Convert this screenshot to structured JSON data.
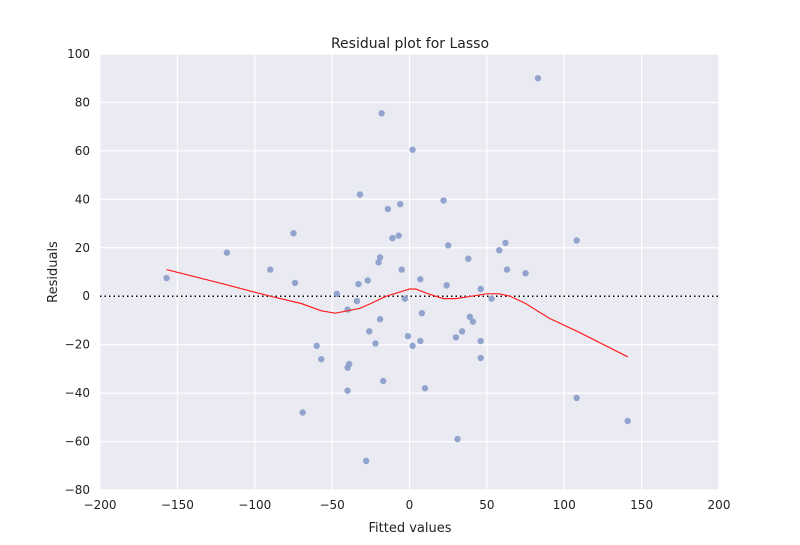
{
  "chart_data": {
    "type": "scatter",
    "title": "Residual plot for Lasso",
    "xlabel": "Fitted values",
    "ylabel": "Residuals",
    "xlim": [
      -200,
      200
    ],
    "ylim": [
      -80,
      100
    ],
    "xticks": [
      -200,
      -150,
      -100,
      -50,
      0,
      50,
      100,
      150,
      200
    ],
    "yticks": [
      -80,
      -60,
      -40,
      -20,
      0,
      20,
      40,
      60,
      80,
      100
    ],
    "xtick_labels": [
      "−200",
      "−150",
      "−100",
      "−50",
      "0",
      "50",
      "100",
      "150",
      "200"
    ],
    "ytick_labels": [
      "−80",
      "−60",
      "−40",
      "−20",
      "0",
      "20",
      "40",
      "60",
      "80",
      "100"
    ],
    "grid": true,
    "reference_line": {
      "y": 0,
      "style": "dotted",
      "color": "#000000"
    },
    "colors": {
      "background": "#eaeaf2",
      "grid": "#ffffff",
      "points": "#8da0cb",
      "lowess": "#ff2020"
    },
    "points": [
      {
        "x": -157,
        "y": 7.5
      },
      {
        "x": -118,
        "y": 18
      },
      {
        "x": -90,
        "y": 11
      },
      {
        "x": -75,
        "y": 26
      },
      {
        "x": -74,
        "y": 5.5
      },
      {
        "x": -69,
        "y": -48
      },
      {
        "x": -60,
        "y": -20.5
      },
      {
        "x": -57,
        "y": -26
      },
      {
        "x": -47,
        "y": 1
      },
      {
        "x": -40,
        "y": -39
      },
      {
        "x": -40,
        "y": -29.5
      },
      {
        "x": -39,
        "y": -28
      },
      {
        "x": -40,
        "y": -5.5
      },
      {
        "x": -34,
        "y": -2
      },
      {
        "x": -33,
        "y": 5
      },
      {
        "x": -32,
        "y": 42
      },
      {
        "x": -28,
        "y": -68
      },
      {
        "x": -27,
        "y": 6.5
      },
      {
        "x": -26,
        "y": -14.5
      },
      {
        "x": -22,
        "y": -19.5
      },
      {
        "x": -20,
        "y": 14
      },
      {
        "x": -19,
        "y": 16
      },
      {
        "x": -19,
        "y": -9.5
      },
      {
        "x": -18,
        "y": 75.5
      },
      {
        "x": -17,
        "y": -35
      },
      {
        "x": -14,
        "y": 36
      },
      {
        "x": -11,
        "y": 24
      },
      {
        "x": -7,
        "y": 25
      },
      {
        "x": -6,
        "y": 38
      },
      {
        "x": -5,
        "y": 11
      },
      {
        "x": -3,
        "y": -1
      },
      {
        "x": -1,
        "y": -16.5
      },
      {
        "x": 2,
        "y": 60.5
      },
      {
        "x": 2,
        "y": -20.5
      },
      {
        "x": 7,
        "y": 7
      },
      {
        "x": 7,
        "y": -18.5
      },
      {
        "x": 8,
        "y": -7
      },
      {
        "x": 10,
        "y": -38
      },
      {
        "x": 22,
        "y": 39.5
      },
      {
        "x": 24,
        "y": 4.5
      },
      {
        "x": 25,
        "y": 21
      },
      {
        "x": 30,
        "y": -17
      },
      {
        "x": 31,
        "y": -59
      },
      {
        "x": 34,
        "y": -14.5
      },
      {
        "x": 38,
        "y": 15.5
      },
      {
        "x": 39,
        "y": -8.5
      },
      {
        "x": 41,
        "y": -10.5
      },
      {
        "x": 46,
        "y": 3
      },
      {
        "x": 46,
        "y": -18.5
      },
      {
        "x": 46,
        "y": -25.5
      },
      {
        "x": 53,
        "y": -1
      },
      {
        "x": 58,
        "y": 19
      },
      {
        "x": 62,
        "y": 22
      },
      {
        "x": 63,
        "y": 11
      },
      {
        "x": 75,
        "y": 9.5
      },
      {
        "x": 83,
        "y": 90
      },
      {
        "x": 108,
        "y": 23
      },
      {
        "x": 108,
        "y": -42
      },
      {
        "x": 141,
        "y": -51.5
      }
    ],
    "lowess": [
      {
        "x": -157,
        "y": 11
      },
      {
        "x": -120,
        "y": 5
      },
      {
        "x": -90,
        "y": 0
      },
      {
        "x": -70,
        "y": -3
      },
      {
        "x": -57,
        "y": -6
      },
      {
        "x": -48,
        "y": -7
      },
      {
        "x": -40,
        "y": -6
      },
      {
        "x": -32,
        "y": -5
      },
      {
        "x": -25,
        "y": -3
      },
      {
        "x": -15,
        "y": 0
      },
      {
        "x": -5,
        "y": 2
      },
      {
        "x": 0,
        "y": 3
      },
      {
        "x": 4,
        "y": 3
      },
      {
        "x": 12,
        "y": 1
      },
      {
        "x": 22,
        "y": -1
      },
      {
        "x": 30,
        "y": -1
      },
      {
        "x": 40,
        "y": 0
      },
      {
        "x": 50,
        "y": 1
      },
      {
        "x": 58,
        "y": 1
      },
      {
        "x": 65,
        "y": 0
      },
      {
        "x": 75,
        "y": -3
      },
      {
        "x": 90,
        "y": -9
      },
      {
        "x": 110,
        "y": -15
      },
      {
        "x": 141,
        "y": -25
      }
    ]
  }
}
